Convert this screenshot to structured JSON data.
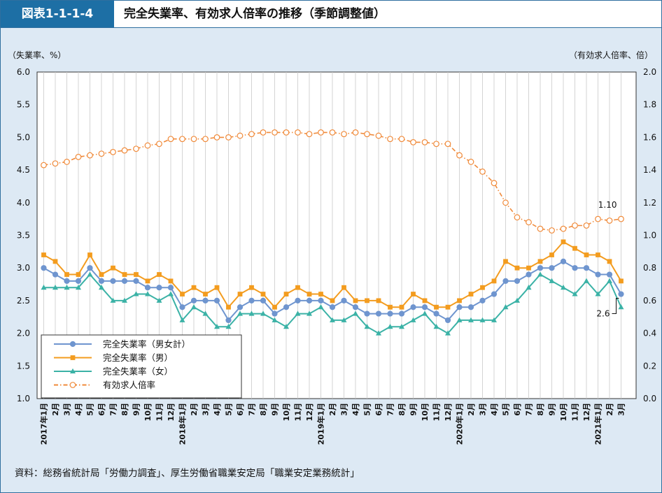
{
  "header": {
    "figure_label": "図表1-1-1-4",
    "title": "完全失業率、有効求人倍率の推移（季節調整値）"
  },
  "source": "資料：総務省統計局「労働力調査」、厚生労働省職業安定局「職業安定業務統計」",
  "chart_data": {
    "type": "line",
    "ylabel_left": "（失業率、%）",
    "ylabel_right": "（有効求人倍率、倍）",
    "ylim_left": [
      1.0,
      6.0
    ],
    "ylim_right": [
      0.0,
      2.0
    ],
    "yticks_left": [
      "1.0",
      "1.5",
      "2.0",
      "2.5",
      "3.0",
      "3.5",
      "4.0",
      "4.5",
      "5.0",
      "5.5",
      "6.0"
    ],
    "yticks_right": [
      "0.0",
      "0.2",
      "0.4",
      "0.6",
      "0.8",
      "1.0",
      "1.2",
      "1.4",
      "1.6",
      "1.8",
      "2.0"
    ],
    "grid": "vertical",
    "legend_position": "bottom-left",
    "categories": [
      "2017年1月",
      "2月",
      "3月",
      "4月",
      "5月",
      "6月",
      "7月",
      "8月",
      "9月",
      "10月",
      "11月",
      "12月",
      "2018年1月",
      "2月",
      "3月",
      "4月",
      "5月",
      "6月",
      "7月",
      "8月",
      "9月",
      "10月",
      "11月",
      "12月",
      "2019年1月",
      "2月",
      "3月",
      "4月",
      "5月",
      "6月",
      "7月",
      "8月",
      "9月",
      "10月",
      "11月",
      "12月",
      "2020年1月",
      "2月",
      "3月",
      "4月",
      "5月",
      "6月",
      "7月",
      "8月",
      "9月",
      "10月",
      "11月",
      "12月",
      "2021年1月",
      "2月",
      "3月"
    ],
    "series": [
      {
        "name": "完全失業率（男女計）",
        "axis": "left",
        "color": "#6f95cf",
        "marker": "circle",
        "values": [
          3.0,
          2.9,
          2.8,
          2.8,
          3.0,
          2.8,
          2.8,
          2.8,
          2.8,
          2.7,
          2.7,
          2.7,
          2.4,
          2.5,
          2.5,
          2.5,
          2.2,
          2.4,
          2.5,
          2.5,
          2.3,
          2.4,
          2.5,
          2.5,
          2.5,
          2.4,
          2.5,
          2.4,
          2.3,
          2.3,
          2.3,
          2.3,
          2.4,
          2.4,
          2.3,
          2.2,
          2.4,
          2.4,
          2.5,
          2.6,
          2.8,
          2.8,
          2.9,
          3.0,
          3.0,
          3.1,
          3.0,
          3.0,
          2.9,
          2.9,
          2.6
        ]
      },
      {
        "name": "完全失業率（男）",
        "axis": "left",
        "color": "#f39c1f",
        "marker": "square",
        "values": [
          3.2,
          3.1,
          2.9,
          2.9,
          3.2,
          2.9,
          3.0,
          2.9,
          2.9,
          2.8,
          2.9,
          2.8,
          2.6,
          2.7,
          2.6,
          2.7,
          2.4,
          2.6,
          2.7,
          2.6,
          2.4,
          2.6,
          2.7,
          2.6,
          2.6,
          2.5,
          2.7,
          2.5,
          2.5,
          2.5,
          2.4,
          2.4,
          2.6,
          2.5,
          2.4,
          2.4,
          2.5,
          2.6,
          2.7,
          2.8,
          3.1,
          3.0,
          3.0,
          3.1,
          3.2,
          3.4,
          3.3,
          3.2,
          3.2,
          3.1,
          2.8
        ]
      },
      {
        "name": "完全失業率（女）",
        "axis": "left",
        "color": "#3bb2a6",
        "marker": "triangle",
        "values": [
          2.7,
          2.7,
          2.7,
          2.7,
          2.9,
          2.7,
          2.5,
          2.5,
          2.6,
          2.6,
          2.5,
          2.6,
          2.2,
          2.4,
          2.3,
          2.1,
          2.1,
          2.3,
          2.3,
          2.3,
          2.2,
          2.1,
          2.3,
          2.3,
          2.4,
          2.2,
          2.2,
          2.3,
          2.1,
          2.0,
          2.1,
          2.1,
          2.2,
          2.3,
          2.1,
          2.0,
          2.2,
          2.2,
          2.2,
          2.2,
          2.4,
          2.5,
          2.7,
          2.9,
          2.8,
          2.7,
          2.6,
          2.8,
          2.6,
          2.8,
          2.4
        ]
      },
      {
        "name": "有効求人倍率",
        "axis": "right",
        "color": "#f08a3a",
        "marker": "open-circle",
        "values": [
          1.43,
          1.44,
          1.45,
          1.48,
          1.49,
          1.5,
          1.51,
          1.52,
          1.53,
          1.55,
          1.56,
          1.59,
          1.59,
          1.59,
          1.59,
          1.6,
          1.6,
          1.61,
          1.62,
          1.63,
          1.63,
          1.63,
          1.63,
          1.62,
          1.63,
          1.63,
          1.62,
          1.63,
          1.62,
          1.61,
          1.59,
          1.59,
          1.57,
          1.57,
          1.56,
          1.56,
          1.49,
          1.45,
          1.39,
          1.32,
          1.2,
          1.11,
          1.08,
          1.04,
          1.03,
          1.04,
          1.06,
          1.06,
          1.1,
          1.09,
          1.1
        ]
      }
    ],
    "annotations": [
      {
        "text": "1.10",
        "series": 3,
        "index": 50
      },
      {
        "text": "2.6",
        "series": 0,
        "index": 50
      }
    ]
  }
}
